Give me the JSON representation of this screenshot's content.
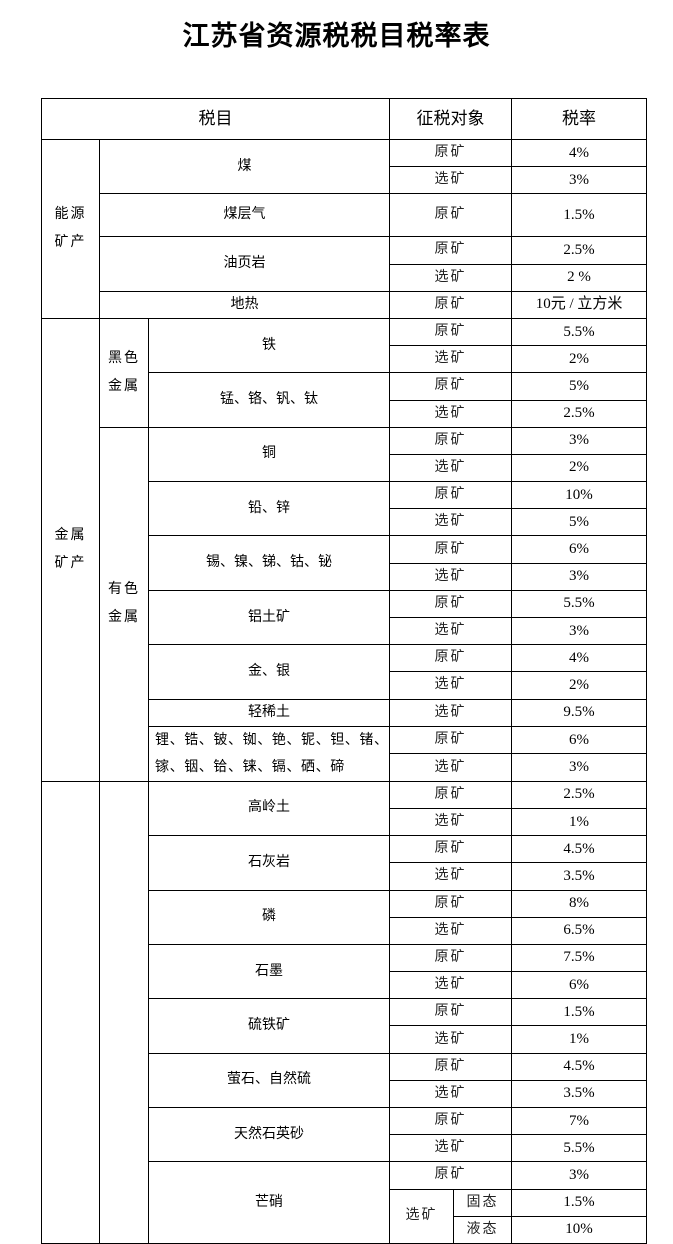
{
  "title": "江苏省资源税税目税率表",
  "header": {
    "item": "税目",
    "object": "征税对象",
    "rate": "税率"
  },
  "groups": [
    {
      "label": "能源矿产",
      "items": [
        {
          "name": "煤",
          "rows": [
            {
              "object": "原矿",
              "rate": "4%"
            },
            {
              "object": "选矿",
              "rate": "3%"
            }
          ]
        },
        {
          "name": "煤层气",
          "rows": [
            {
              "object": "原矿",
              "rate": "1.5%"
            }
          ]
        },
        {
          "name": "油页岩",
          "rows": [
            {
              "object": "原矿",
              "rate": "2.5%"
            },
            {
              "object": "选矿",
              "rate": "2 %"
            }
          ]
        },
        {
          "name": "地热",
          "rows": [
            {
              "object": "原矿",
              "rate": "10元 / 立方米"
            }
          ]
        }
      ]
    },
    {
      "label": "金属矿产",
      "subgroups": [
        {
          "label": "黑色金属",
          "items": [
            {
              "name": "铁",
              "rows": [
                {
                  "object": "原矿",
                  "rate": "5.5%"
                },
                {
                  "object": "选矿",
                  "rate": "2%"
                }
              ]
            },
            {
              "name": "锰、铬、钒、钛",
              "rows": [
                {
                  "object": "原矿",
                  "rate": "5%"
                },
                {
                  "object": "选矿",
                  "rate": "2.5%"
                }
              ]
            }
          ]
        },
        {
          "label": "有色金属",
          "items": [
            {
              "name": "铜",
              "rows": [
                {
                  "object": "原矿",
                  "rate": "3%"
                },
                {
                  "object": "选矿",
                  "rate": "2%"
                }
              ]
            },
            {
              "name": "铅、锌",
              "rows": [
                {
                  "object": "原矿",
                  "rate": "10%"
                },
                {
                  "object": "选矿",
                  "rate": "5%"
                }
              ]
            },
            {
              "name": "锡、镍、锑、钴、铋",
              "rows": [
                {
                  "object": "原矿",
                  "rate": "6%"
                },
                {
                  "object": "选矿",
                  "rate": "3%"
                }
              ]
            },
            {
              "name": "铝土矿",
              "rows": [
                {
                  "object": "原矿",
                  "rate": "5.5%"
                },
                {
                  "object": "选矿",
                  "rate": "3%"
                }
              ]
            },
            {
              "name": "金、银",
              "rows": [
                {
                  "object": "原矿",
                  "rate": "4%"
                },
                {
                  "object": "选矿",
                  "rate": "2%"
                }
              ]
            },
            {
              "name": "轻稀土",
              "rows": [
                {
                  "object": "选矿",
                  "rate": "9.5%"
                }
              ]
            },
            {
              "name": "锂、锆、铍、铷、铯、铌、钽、锗、镓、铟、铪、铼、镉、硒、碲",
              "rows": [
                {
                  "object": "原矿",
                  "rate": "6%"
                },
                {
                  "object": "选矿",
                  "rate": "3%"
                }
              ]
            }
          ]
        }
      ]
    },
    {
      "subgroups": [
        {
          "items": [
            {
              "name": "高岭土",
              "rows": [
                {
                  "object": "原矿",
                  "rate": "2.5%"
                },
                {
                  "object": "选矿",
                  "rate": "1%"
                }
              ]
            },
            {
              "name": "石灰岩",
              "rows": [
                {
                  "object": "原矿",
                  "rate": "4.5%"
                },
                {
                  "object": "选矿",
                  "rate": "3.5%"
                }
              ]
            },
            {
              "name": "磷",
              "rows": [
                {
                  "object": "原矿",
                  "rate": "8%"
                },
                {
                  "object": "选矿",
                  "rate": "6.5%"
                }
              ]
            },
            {
              "name": "石墨",
              "rows": [
                {
                  "object": "原矿",
                  "rate": "7.5%"
                },
                {
                  "object": "选矿",
                  "rate": "6%"
                }
              ]
            },
            {
              "name": "硫铁矿",
              "rows": [
                {
                  "object": "原矿",
                  "rate": "1.5%"
                },
                {
                  "object": "选矿",
                  "rate": "1%"
                }
              ]
            },
            {
              "name": "萤石、自然硫",
              "rows": [
                {
                  "object": "原矿",
                  "rate": "4.5%"
                },
                {
                  "object": "选矿",
                  "rate": "3.5%"
                }
              ]
            },
            {
              "name": "天然石英砂",
              "rows": [
                {
                  "object": "原矿",
                  "rate": "7%"
                },
                {
                  "object": "选矿",
                  "rate": "5.5%"
                }
              ]
            },
            {
              "name": "芒硝",
              "rows": [
                {
                  "object": "原矿",
                  "rate": "3%"
                },
                {
                  "object": "选矿",
                  "states": [
                    {
                      "state": "固态",
                      "rate": "1.5%"
                    },
                    {
                      "state": "液态",
                      "rate": "10%"
                    }
                  ]
                }
              ]
            }
          ]
        }
      ]
    }
  ]
}
